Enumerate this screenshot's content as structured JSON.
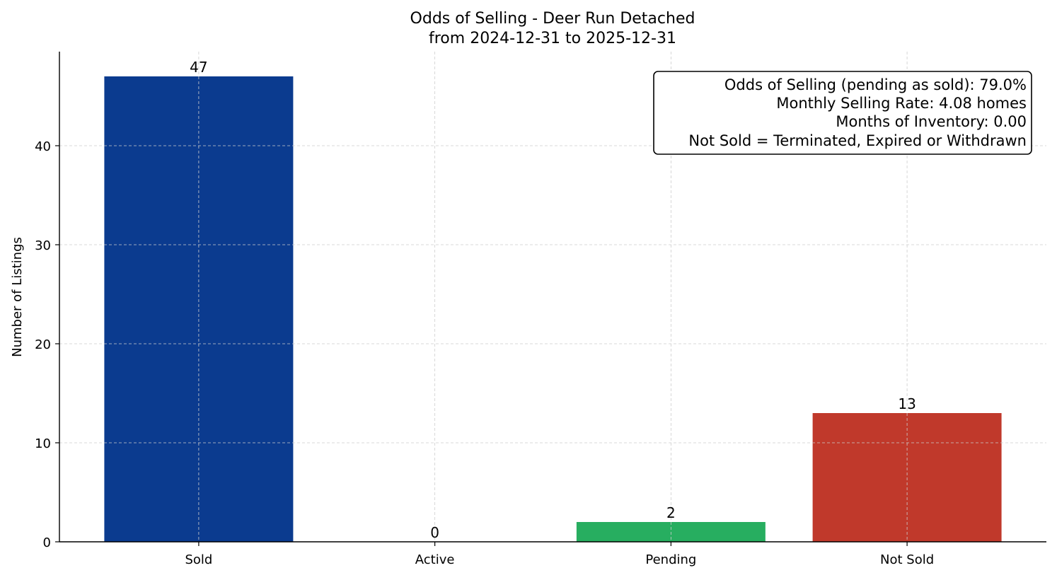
{
  "chart_data": {
    "type": "bar",
    "title": "Odds of Selling - Deer Run Detached",
    "subtitle": "from 2024-12-31 to 2025-12-31",
    "xlabel": "",
    "ylabel": "Number of Listings",
    "categories": [
      "Sold",
      "Active",
      "Pending",
      "Not Sold"
    ],
    "values": [
      47,
      0,
      2,
      13
    ],
    "colors": [
      "#0b3b8f",
      "#0b3b8f",
      "#27ae60",
      "#c0392b"
    ],
    "ylim": [
      0,
      49.5
    ],
    "yticks": [
      0,
      10,
      20,
      30,
      40
    ],
    "grid": true,
    "annotation_box": {
      "position": "top-right",
      "lines": [
        "Odds of Selling (pending as sold): 79.0%",
        "Monthly Selling Rate: 4.08 homes",
        "Months of Inventory: 0.00",
        "Not Sold = Terminated, Expired or Withdrawn"
      ]
    }
  }
}
